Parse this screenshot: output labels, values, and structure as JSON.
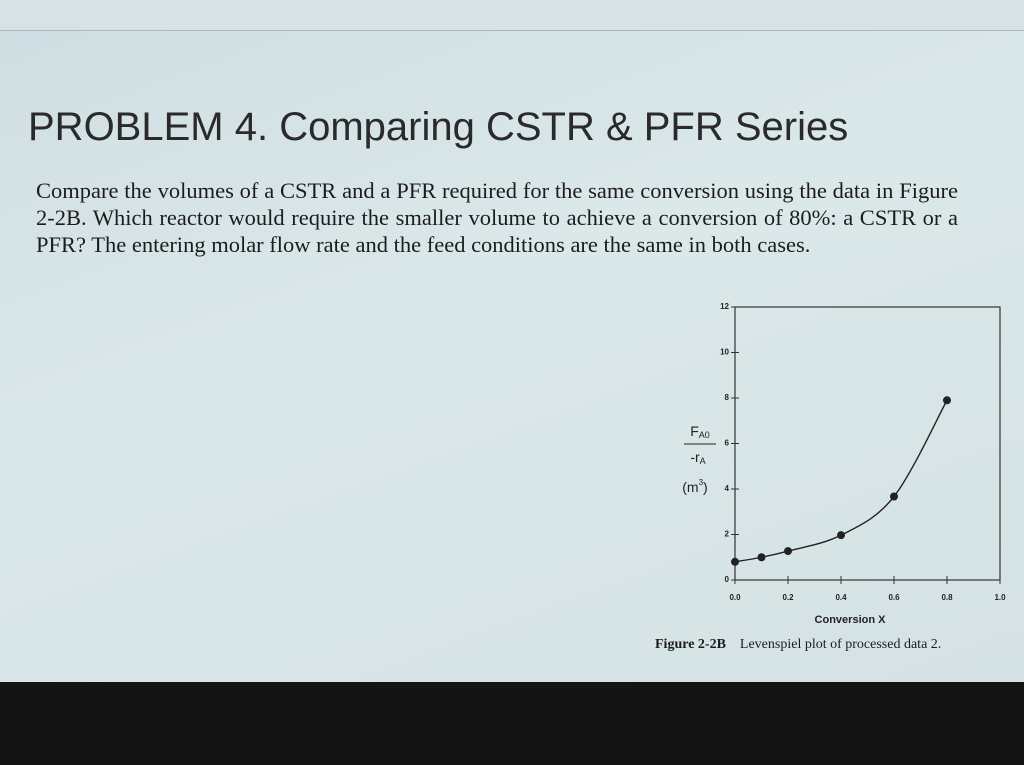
{
  "title": "PROBLEM 4. Comparing CSTR & PFR Series",
  "body": "Compare the volumes of a CSTR and a PFR required for the same conversion using the data in Figure 2-2B. Which reactor would require the smaller volume to achieve a conversion of 80%: a CSTR or a PFR? The entering molar flow rate and the feed conditions are the same in both cases.",
  "chart_data": {
    "type": "line",
    "x_label": "Conversion X",
    "y_label": {
      "numerator": "F",
      "numerator_sub": "A0",
      "denominator": "-r",
      "denominator_sub": "A",
      "units": "(m",
      "units_sup": "3",
      "units_end": ")"
    },
    "x": [
      0,
      0.1,
      0.2,
      0.4,
      0.6,
      0.8
    ],
    "series": [
      {
        "color": "#222222",
        "values": [
          0.8,
          1.0,
          1.27,
          1.97,
          3.67,
          7.9
        ]
      }
    ],
    "xlim": [
      0,
      1
    ],
    "ylim": [
      0,
      12
    ],
    "xticks": [
      {
        "value": 0,
        "label": "0.0"
      },
      0.2,
      0.4,
      0.6,
      0.8,
      {
        "value": 1,
        "label": "1.0"
      }
    ],
    "yticks": [
      0,
      2,
      4,
      6,
      8,
      10,
      12
    ]
  },
  "caption": {
    "label": "Figure 2-2B",
    "text": "Levenspiel plot of processed data 2."
  }
}
